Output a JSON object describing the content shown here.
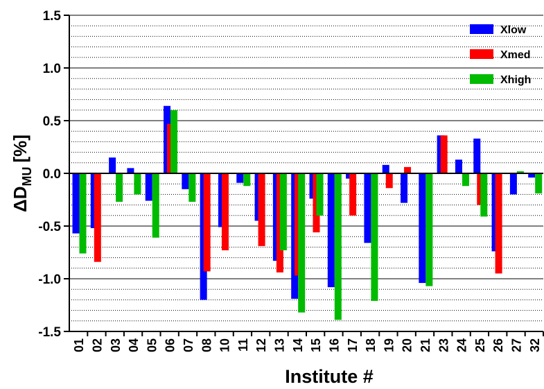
{
  "chart_data": {
    "type": "bar",
    "ylabel": {
      "main": "ΔD",
      "sub": "MU",
      "unit": "[%]"
    },
    "xlabel": "Institute #",
    "categories": [
      "01",
      "02",
      "03",
      "04",
      "05",
      "06",
      "07",
      "08",
      "10",
      "11",
      "12",
      "13",
      "14",
      "15",
      "16",
      "17",
      "18",
      "19",
      "20",
      "21",
      "23",
      "24",
      "25",
      "26",
      "27",
      "32"
    ],
    "series": [
      {
        "name": "Xlow",
        "color": "#0000ff",
        "values": [
          -0.57,
          -0.52,
          0.15,
          0.05,
          -0.26,
          0.64,
          -0.15,
          -1.2,
          -0.51,
          -0.09,
          -0.45,
          -0.83,
          -1.19,
          -0.24,
          -1.08,
          -0.05,
          -0.66,
          0.08,
          -0.28,
          -1.04,
          0.36,
          0.13,
          0.33,
          -0.74,
          -0.2,
          -0.04
        ]
      },
      {
        "name": "Xmed",
        "color": "#ff0000",
        "values": [
          null,
          -0.84,
          null,
          null,
          null,
          0.47,
          null,
          -0.93,
          -0.73,
          null,
          -0.69,
          -0.94,
          -0.97,
          -0.56,
          null,
          -0.4,
          null,
          -0.14,
          0.06,
          null,
          0.36,
          null,
          -0.3,
          -0.95,
          null,
          null
        ]
      },
      {
        "name": "Xhigh",
        "color": "#00bb00",
        "values": [
          -0.76,
          null,
          -0.27,
          -0.2,
          -0.61,
          0.6,
          -0.27,
          null,
          null,
          -0.12,
          null,
          -0.73,
          -1.32,
          -0.4,
          -1.39,
          null,
          -1.21,
          null,
          null,
          -1.07,
          null,
          -0.12,
          -0.41,
          null,
          0.02,
          -0.19
        ]
      }
    ],
    "ylim": [
      -1.5,
      1.5
    ],
    "yticks": [
      -1.5,
      {
        "value": -1,
        "label": "-1.0"
      },
      -0.5,
      {
        "value": 0,
        "label": "0.0"
      },
      0.5,
      {
        "value": 1,
        "label": "1.0"
      },
      1.5
    ],
    "grid": true,
    "minor_grid": true,
    "legend": "upper right"
  }
}
